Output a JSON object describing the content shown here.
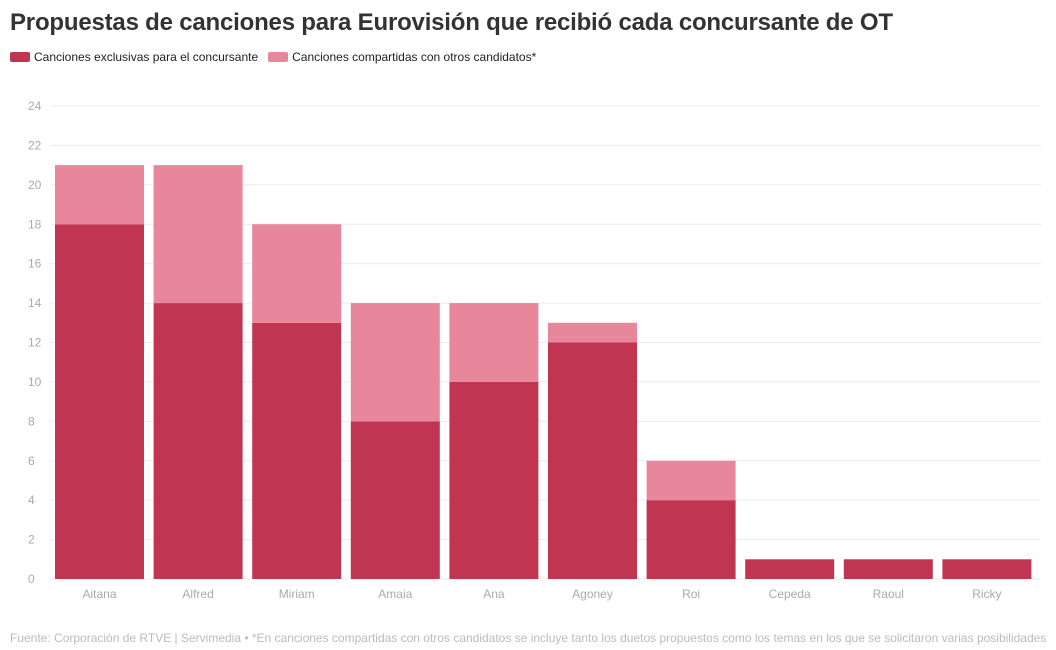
{
  "colors": {
    "exclusive": "#c03552",
    "shared": "#e8879b",
    "grid": "#ebebeb",
    "tick_text": "#aaaaaa"
  },
  "chart_data": {
    "type": "bar",
    "stacked": true,
    "title": "Propuestas de canciones para Eurovisión que recibió cada concursante de OT",
    "categories": [
      "Aitana",
      "Alfred",
      "Miriam",
      "Amaia",
      "Ana",
      "Agoney",
      "Roi",
      "Cepeda",
      "Raoul",
      "Ricky"
    ],
    "series": [
      {
        "name": "Canciones exclusivas para el concursante",
        "values": [
          18,
          14,
          13,
          8,
          10,
          12,
          4,
          1,
          1,
          1
        ]
      },
      {
        "name": "Canciones compartidas con otros candidatos*",
        "values": [
          3,
          7,
          5,
          6,
          4,
          1,
          2,
          0,
          0,
          0
        ]
      }
    ],
    "xlabel": "",
    "ylabel": "",
    "ylim": [
      0,
      24
    ],
    "yticks": [
      "0",
      "2",
      "4",
      "6",
      "8",
      "10",
      "12",
      "14",
      "16",
      "18",
      "20",
      "22",
      "24"
    ],
    "grid": true,
    "legend_position": "top-left"
  },
  "footer": "Fuente: Corporación de RTVE | Servimedia • *En canciones compartidas con otros candidatos se incluye tanto los duetos propuestos como los temas en los que se solicitaron varias posibilidades"
}
